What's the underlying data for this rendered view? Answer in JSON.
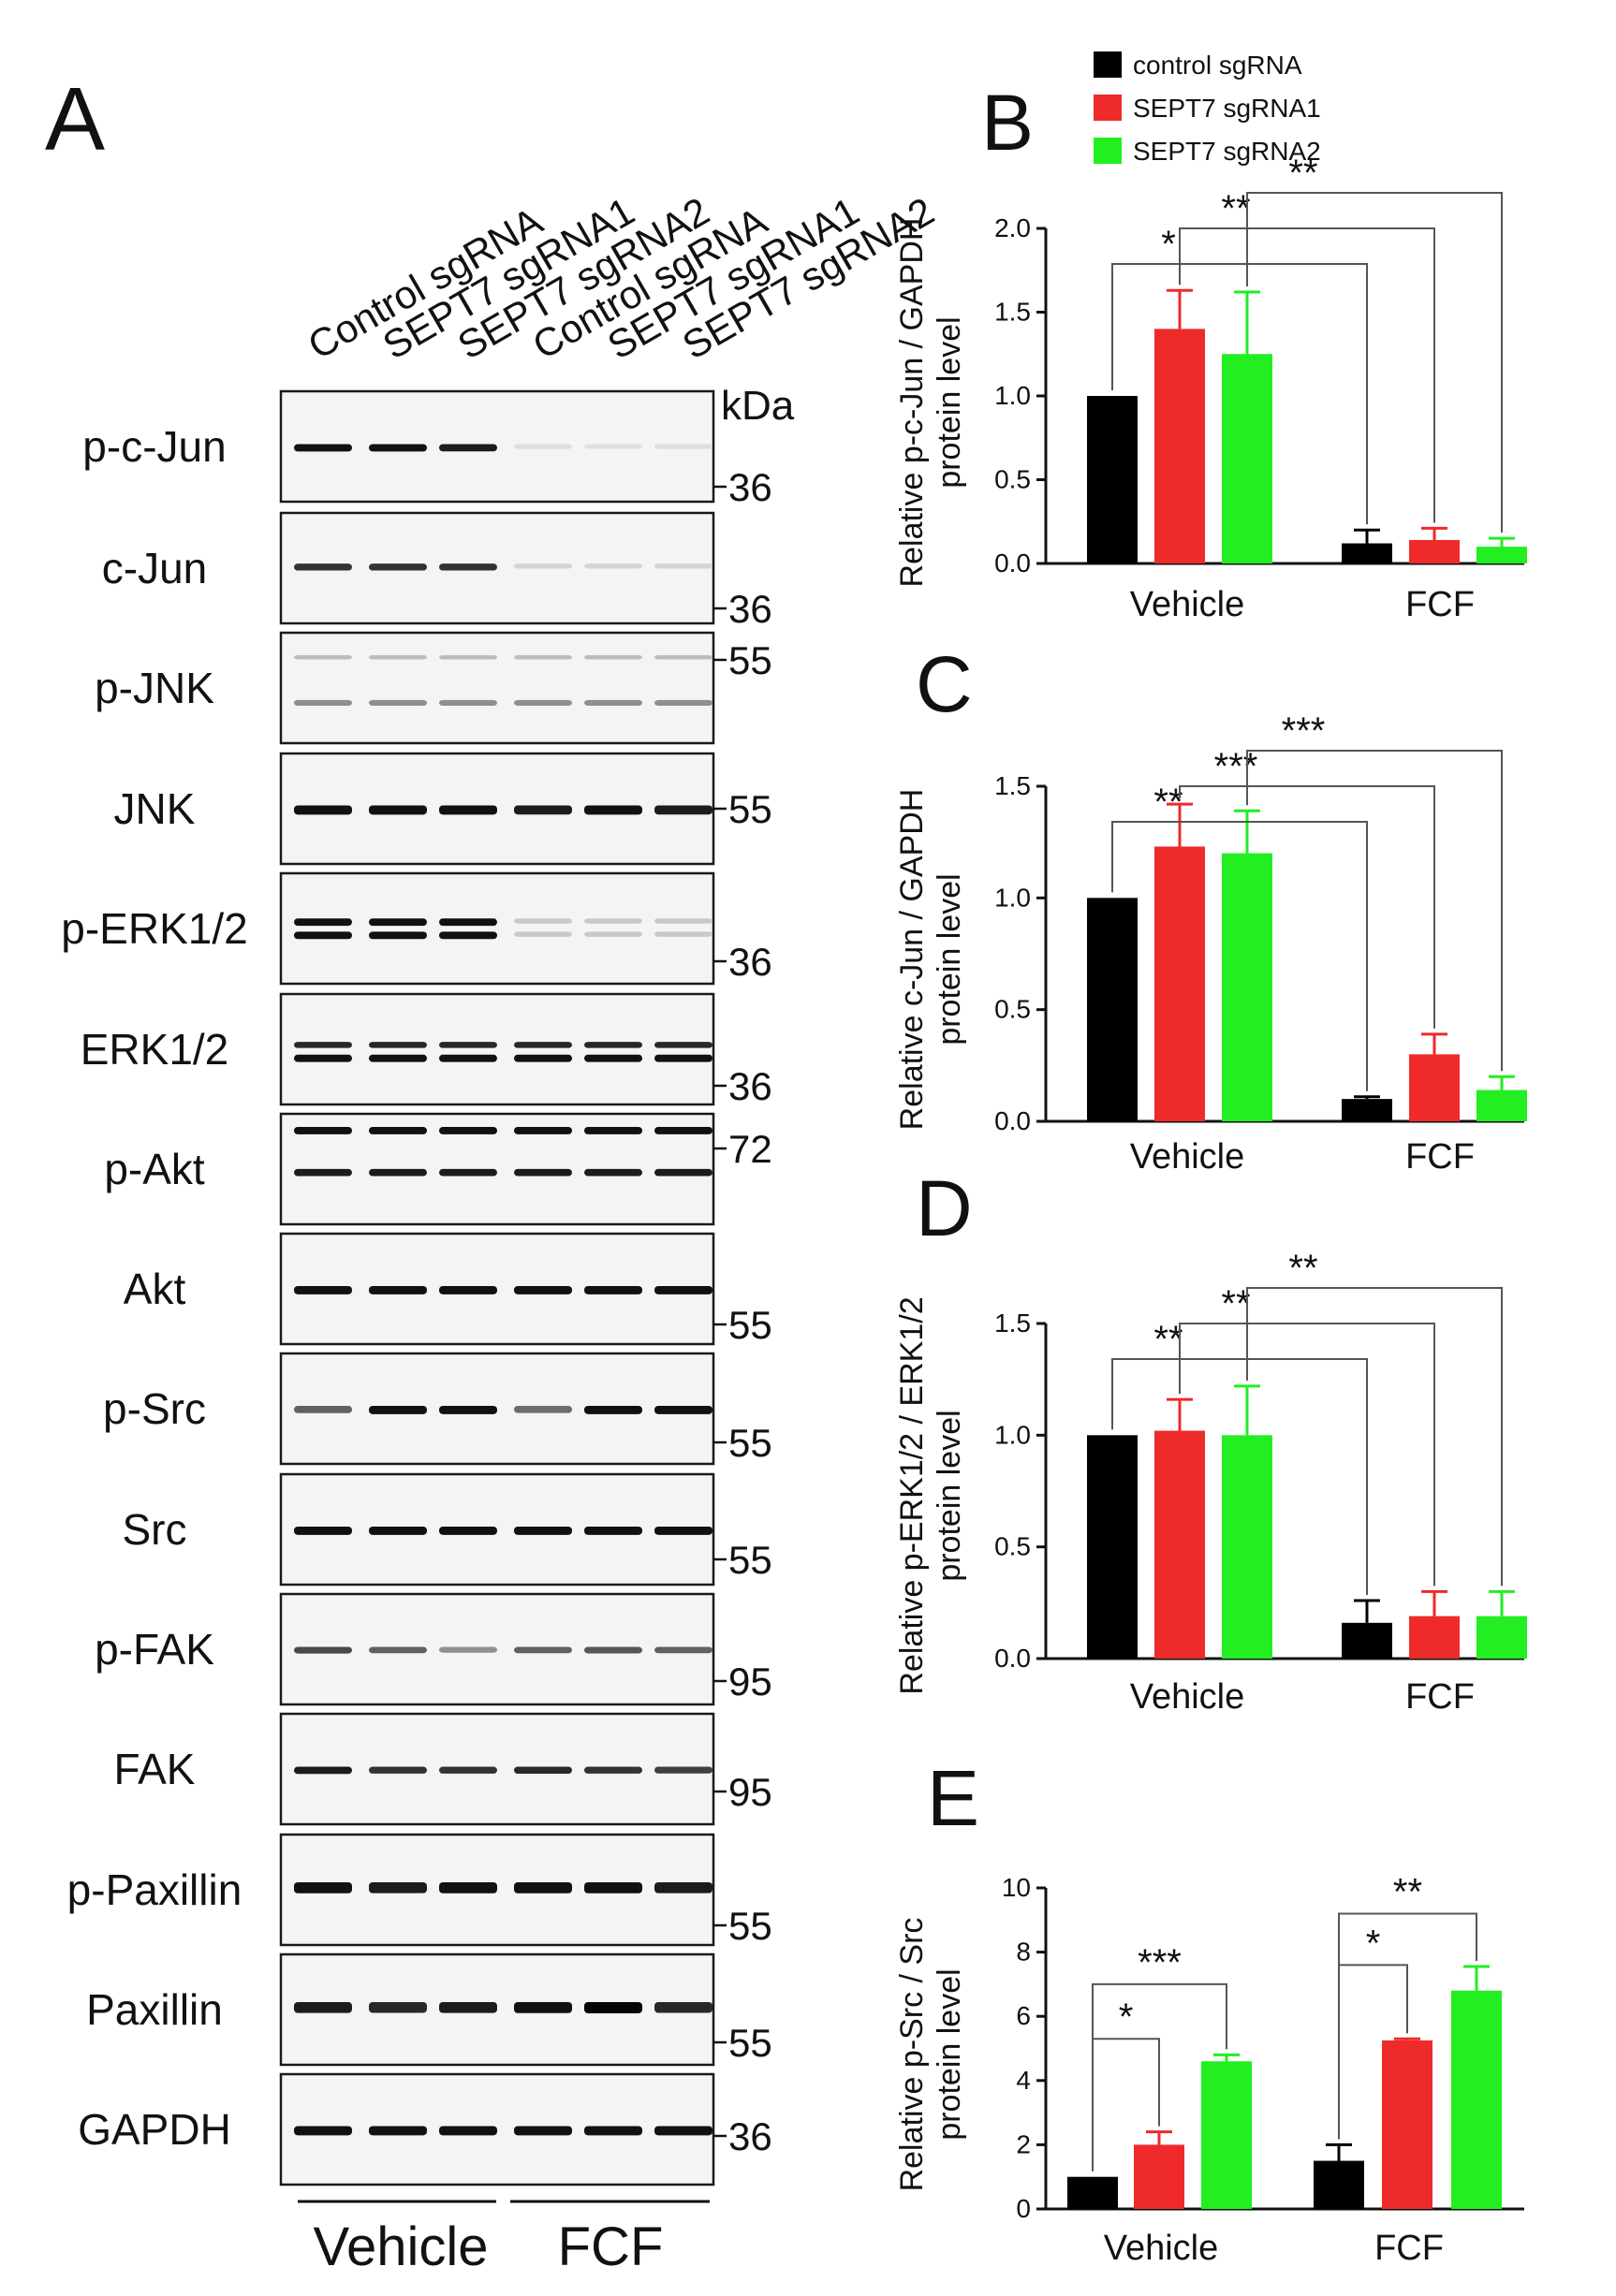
{
  "panel_a": {
    "letter": "A",
    "lanes": [
      "Control sgRNA",
      "SEPT7 sgRNA1",
      "SEPT7 sgRNA2",
      "Control sgRNA",
      "SEPT7 sgRNA1",
      "SEPT7 sgRNA2"
    ],
    "kda_label": "kDa",
    "groups": [
      "Vehicle",
      "FCF"
    ],
    "blots": [
      {
        "label": "p-c-Jun",
        "markers": [
          "36"
        ],
        "bands": [
          {
            "y": 0.5,
            "t": 5,
            "int": [
              0.95,
              0.95,
              0.9,
              0.06,
              0.05,
              0.06
            ]
          }
        ]
      },
      {
        "label": "c-Jun",
        "markers": [
          "36"
        ],
        "bands": [
          {
            "y": 0.48,
            "t": 5,
            "int": [
              0.8,
              0.8,
              0.8,
              0.1,
              0.1,
              0.1
            ]
          }
        ]
      },
      {
        "label": "p-JNK",
        "markers": [
          "55"
        ],
        "bands": [
          {
            "y": 0.22,
            "t": 4,
            "int": [
              0.2,
              0.2,
              0.2,
              0.2,
              0.2,
              0.2
            ]
          },
          {
            "y": 0.63,
            "t": 5,
            "int": [
              0.4,
              0.4,
              0.4,
              0.4,
              0.4,
              0.4
            ]
          }
        ]
      },
      {
        "label": "JNK",
        "markers": [
          "55"
        ],
        "bands": [
          {
            "y": 0.5,
            "t": 7,
            "int": [
              0.95,
              0.95,
              0.95,
              0.9,
              0.95,
              0.9
            ]
          }
        ]
      },
      {
        "label": "p-ERK1/2",
        "markers": [
          "36"
        ],
        "bands": [
          {
            "y": 0.43,
            "t": 5,
            "int": [
              0.95,
              0.95,
              0.95,
              0.15,
              0.15,
              0.15
            ]
          },
          {
            "y": 0.55,
            "t": 5,
            "int": [
              0.95,
              0.95,
              0.95,
              0.15,
              0.15,
              0.15
            ]
          }
        ]
      },
      {
        "label": "ERK1/2",
        "markers": [
          "36"
        ],
        "bands": [
          {
            "y": 0.45,
            "t": 4,
            "int": [
              0.85,
              0.85,
              0.85,
              0.85,
              0.85,
              0.85
            ]
          },
          {
            "y": 0.57,
            "t": 5,
            "int": [
              0.95,
              0.95,
              0.95,
              0.95,
              0.95,
              0.95
            ]
          }
        ]
      },
      {
        "label": "p-Akt",
        "markers": [
          "72"
        ],
        "bands": [
          {
            "y": 0.14,
            "t": 5,
            "int": [
              0.95,
              0.95,
              0.95,
              0.95,
              0.95,
              0.95
            ]
          },
          {
            "y": 0.52,
            "t": 5,
            "int": [
              0.9,
              0.9,
              0.9,
              0.9,
              0.9,
              0.9
            ]
          }
        ]
      },
      {
        "label": "Akt",
        "markers": [
          "55"
        ],
        "bands": [
          {
            "y": 0.5,
            "t": 6,
            "int": [
              0.95,
              0.95,
              0.95,
              0.95,
              0.95,
              0.95
            ]
          }
        ]
      },
      {
        "label": "p-Src",
        "markers": [
          "55"
        ],
        "bands": [
          {
            "y": 0.5,
            "t": 6,
            "int": [
              0.6,
              0.95,
              0.95,
              0.55,
              0.95,
              0.95
            ]
          }
        ]
      },
      {
        "label": "Src",
        "markers": [
          "55"
        ],
        "bands": [
          {
            "y": 0.5,
            "t": 6,
            "int": [
              0.95,
              0.95,
              0.95,
              0.95,
              0.95,
              0.95
            ]
          }
        ]
      },
      {
        "label": "p-FAK",
        "markers": [
          "95"
        ],
        "bands": [
          {
            "y": 0.5,
            "t": 5,
            "int": [
              0.7,
              0.6,
              0.4,
              0.6,
              0.65,
              0.6
            ]
          }
        ]
      },
      {
        "label": "FAK",
        "markers": [
          "95"
        ],
        "bands": [
          {
            "y": 0.5,
            "t": 5,
            "int": [
              0.9,
              0.8,
              0.8,
              0.85,
              0.8,
              0.75
            ]
          }
        ]
      },
      {
        "label": "p-Paxillin",
        "markers": [
          "55"
        ],
        "bands": [
          {
            "y": 0.47,
            "t": 9,
            "int": [
              0.95,
              0.9,
              0.95,
              0.95,
              0.95,
              0.9
            ]
          }
        ]
      },
      {
        "label": "Paxillin",
        "markers": [
          "55"
        ],
        "bands": [
          {
            "y": 0.47,
            "t": 9,
            "int": [
              0.9,
              0.85,
              0.9,
              0.95,
              1.0,
              0.85
            ]
          }
        ]
      },
      {
        "label": "GAPDH",
        "markers": [
          "36"
        ],
        "bands": [
          {
            "y": 0.5,
            "t": 7,
            "int": [
              0.95,
              0.95,
              0.95,
              0.95,
              0.95,
              0.95
            ]
          }
        ]
      }
    ]
  },
  "legend": {
    "entries": [
      {
        "name": "control sgRNA",
        "color": "#000000"
      },
      {
        "name": "SEPT7 sgRNA1",
        "color": "#ee2a2a"
      },
      {
        "name": "SEPT7 sgRNA2",
        "color": "#22ee22"
      }
    ]
  },
  "colors": {
    "control": "#000000",
    "sgRNA1": "#ee2a2a",
    "sgRNA2": "#22ee22"
  },
  "chart_data": [
    {
      "panel": "B",
      "type": "bar",
      "ylabel": "Relative p-c-Jun / GAPDH protein level",
      "categories": [
        "Vehicle",
        "FCF"
      ],
      "ylim": [
        0,
        2.0
      ],
      "yticks": [
        "0.0",
        "0.5",
        "1.0",
        "1.5",
        "2.0"
      ],
      "series": [
        {
          "name": "control sgRNA",
          "values": [
            1.0,
            0.12
          ],
          "errors": [
            0,
            0.08
          ]
        },
        {
          "name": "SEPT7 sgRNA1",
          "values": [
            1.4,
            0.14
          ],
          "errors": [
            0.23,
            0.07
          ]
        },
        {
          "name": "SEPT7 sgRNA2",
          "values": [
            1.25,
            0.1
          ],
          "errors": [
            0.37,
            0.05
          ]
        }
      ],
      "significance": [
        {
          "from": [
            0,
            0
          ],
          "to": [
            1,
            0
          ],
          "label": "*"
        },
        {
          "from": [
            0,
            1
          ],
          "to": [
            1,
            1
          ],
          "label": "**"
        },
        {
          "from": [
            0,
            2
          ],
          "to": [
            1,
            2
          ],
          "label": "**"
        }
      ]
    },
    {
      "panel": "C",
      "type": "bar",
      "ylabel": "Relative c-Jun / GAPDH protein level",
      "categories": [
        "Vehicle",
        "FCF"
      ],
      "ylim": [
        0,
        1.5
      ],
      "yticks": [
        "0.0",
        "0.5",
        "1.0",
        "1.5"
      ],
      "series": [
        {
          "name": "control sgRNA",
          "values": [
            1.0,
            0.1
          ],
          "errors": [
            0,
            0.01
          ]
        },
        {
          "name": "SEPT7 sgRNA1",
          "values": [
            1.23,
            0.3
          ],
          "errors": [
            0.19,
            0.09
          ]
        },
        {
          "name": "SEPT7 sgRNA2",
          "values": [
            1.2,
            0.14
          ],
          "errors": [
            0.19,
            0.06
          ]
        }
      ],
      "significance": [
        {
          "from": [
            0,
            0
          ],
          "to": [
            1,
            0
          ],
          "label": "**"
        },
        {
          "from": [
            0,
            1
          ],
          "to": [
            1,
            1
          ],
          "label": "***"
        },
        {
          "from": [
            0,
            2
          ],
          "to": [
            1,
            2
          ],
          "label": "***"
        }
      ]
    },
    {
      "panel": "D",
      "type": "bar",
      "ylabel": "Relative p-ERK1/2 / ERK1/2 protein level",
      "categories": [
        "Vehicle",
        "FCF"
      ],
      "ylim": [
        0,
        1.5
      ],
      "yticks": [
        "0.0",
        "0.5",
        "1.0",
        "1.5"
      ],
      "series": [
        {
          "name": "control sgRNA",
          "values": [
            1.0,
            0.16
          ],
          "errors": [
            0,
            0.1
          ]
        },
        {
          "name": "SEPT7 sgRNA1",
          "values": [
            1.02,
            0.19
          ],
          "errors": [
            0.14,
            0.11
          ]
        },
        {
          "name": "SEPT7 sgRNA2",
          "values": [
            1.0,
            0.19
          ],
          "errors": [
            0.22,
            0.11
          ]
        }
      ],
      "significance": [
        {
          "from": [
            0,
            0
          ],
          "to": [
            1,
            0
          ],
          "label": "**"
        },
        {
          "from": [
            0,
            1
          ],
          "to": [
            1,
            1
          ],
          "label": "**"
        },
        {
          "from": [
            0,
            2
          ],
          "to": [
            1,
            2
          ],
          "label": "**"
        }
      ]
    },
    {
      "panel": "E",
      "type": "bar",
      "ylabel": "Relative p-Src / Src protein level",
      "categories": [
        "Vehicle",
        "FCF"
      ],
      "ylim": [
        0,
        10
      ],
      "yticks": [
        "0",
        "2",
        "4",
        "6",
        "8",
        "10"
      ],
      "series": [
        {
          "name": "control sgRNA",
          "values": [
            1.0,
            1.5
          ],
          "errors": [
            0,
            0.5
          ]
        },
        {
          "name": "SEPT7 sgRNA1",
          "values": [
            2.0,
            5.25
          ],
          "errors": [
            0.4,
            0.05
          ]
        },
        {
          "name": "SEPT7 sgRNA2",
          "values": [
            4.6,
            6.8
          ],
          "errors": [
            0.2,
            0.75
          ]
        }
      ],
      "significance": [
        {
          "from": [
            0,
            0
          ],
          "to": [
            0,
            1
          ],
          "label": "*"
        },
        {
          "from": [
            0,
            0
          ],
          "to": [
            0,
            2
          ],
          "label": "***"
        },
        {
          "from": [
            1,
            0
          ],
          "to": [
            1,
            1
          ],
          "label": "*"
        },
        {
          "from": [
            1,
            0
          ],
          "to": [
            1,
            2
          ],
          "label": "**"
        }
      ]
    }
  ]
}
